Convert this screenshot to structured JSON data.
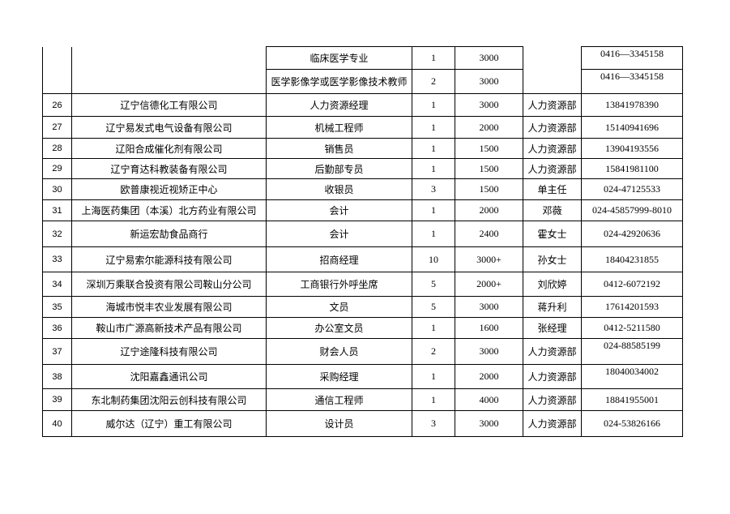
{
  "continued_rows": [
    {
      "position": "临床医学专业",
      "count": "1",
      "salary": "3000",
      "phone": "0416—3345158"
    },
    {
      "position": "医学影像学或医学影像技术教师",
      "count": "2",
      "salary": "3000",
      "phone": "0416—3345158"
    }
  ],
  "rows": [
    {
      "no": "26",
      "company": "辽宁信德化工有限公司",
      "position": "人力资源经理",
      "count": "1",
      "salary": "3000",
      "contact": "人力资源部",
      "phone": "13841978390"
    },
    {
      "no": "27",
      "company": "辽宁易发式电气设备有限公司",
      "position": "机械工程师",
      "count": "1",
      "salary": "2000",
      "contact": "人力资源部",
      "phone": "15140941696"
    },
    {
      "no": "28",
      "company": "辽阳合成催化剂有限公司",
      "position": "销售员",
      "count": "1",
      "salary": "1500",
      "contact": "人力资源部",
      "phone": "13904193556"
    },
    {
      "no": "29",
      "company": "辽宁育达科教装备有限公司",
      "position": "后勤部专员",
      "count": "1",
      "salary": "1500",
      "contact": "人力资源部",
      "phone": "15841981100"
    },
    {
      "no": "30",
      "company": "欧普康视近视矫正中心",
      "position": "收银员",
      "count": "3",
      "salary": "1500",
      "contact": "单主任",
      "phone": "024-47125533"
    },
    {
      "no": "31",
      "company": "上海医药集团（本溪）北方药业有限公司",
      "position": "会计",
      "count": "1",
      "salary": "2000",
      "contact": "邓薇",
      "phone": "024-45857999-8010"
    },
    {
      "no": "32",
      "company": "新运宏劼食品商行",
      "position": "会计",
      "count": "1",
      "salary": "2400",
      "contact": "霍女士",
      "phone": "024-42920636"
    },
    {
      "no": "33",
      "company": "辽宁易索尔能源科技有限公司",
      "position": "招商经理",
      "count": "10",
      "salary": "3000+",
      "contact": "孙女士",
      "phone": "18404231855"
    },
    {
      "no": "34",
      "company": "深圳万乘联合投资有限公司鞍山分公司",
      "position": "工商银行外呼坐席",
      "count": "5",
      "salary": "2000+",
      "contact": "刘欣婷",
      "phone": "0412-6072192"
    },
    {
      "no": "35",
      "company": "海城市悦丰农业发展有限公司",
      "position": "文员",
      "count": "5",
      "salary": "3000",
      "contact": "蒋升利",
      "phone": "17614201593"
    },
    {
      "no": "36",
      "company": "鞍山市广源高新技术产品有限公司",
      "position": "办公室文员",
      "count": "1",
      "salary": "1600",
      "contact": "张经理",
      "phone": "0412-5211580"
    },
    {
      "no": "37",
      "company": "辽宁途隆科技有限公司",
      "position": "财会人员",
      "count": "2",
      "salary": "3000",
      "contact": "人力资源部",
      "phone": "024-88585199",
      "phone_top": true
    },
    {
      "no": "38",
      "company": "沈阳嘉鑫通讯公司",
      "position": "采购经理",
      "count": "1",
      "salary": "2000",
      "contact": "人力资源部",
      "phone": "18040034002",
      "phone_top": true
    },
    {
      "no": "39",
      "company": "东北制药集团沈阳云创科技有限公司",
      "position": "通信工程师",
      "count": "1",
      "salary": "4000",
      "contact": "人力资源部",
      "phone": "18841955001"
    },
    {
      "no": "40",
      "company": "威尔达（辽宁）重工有限公司",
      "position": "设计员",
      "count": "3",
      "salary": "3000",
      "contact": "人力资源部",
      "phone": "024-53826166"
    }
  ]
}
